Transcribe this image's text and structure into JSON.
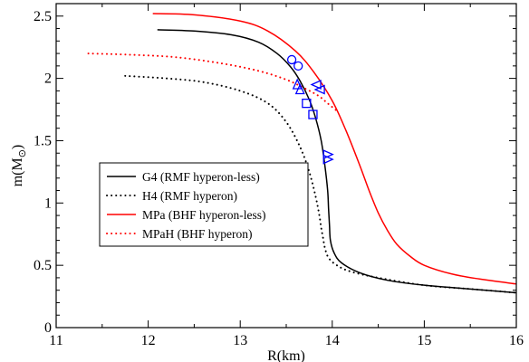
{
  "chart_data": {
    "type": "line",
    "xlabel": "R(km)",
    "ylabel": "m(M",
    "ylabel_sub": "⊙",
    "ylabel_close": ")",
    "xlim": [
      11,
      16
    ],
    "ylim": [
      0,
      2.6
    ],
    "xticks": [
      11,
      12,
      13,
      14,
      15,
      16
    ],
    "yticks": [
      0,
      0.5,
      1,
      1.5,
      2,
      2.5
    ],
    "xtick_labels": [
      "11",
      "12",
      "13",
      "14",
      "15",
      "16"
    ],
    "ytick_labels": [
      "0",
      "0.5",
      "1",
      "1.5",
      "2",
      "2.5"
    ],
    "grid": false,
    "legend_placement": "center-left",
    "series": [
      {
        "name": "G4 (RMF hyperon-less)",
        "color": "#000000",
        "style": "solid",
        "x": [
          12.1,
          12.5,
          12.9,
          13.2,
          13.4,
          13.55,
          13.65,
          13.75,
          13.82,
          13.88,
          13.92,
          13.95,
          13.96,
          13.97,
          13.98,
          14.02,
          14.1,
          14.3,
          14.6,
          15.0,
          15.5,
          16.0
        ],
        "y": [
          2.39,
          2.38,
          2.35,
          2.29,
          2.2,
          2.09,
          1.98,
          1.83,
          1.68,
          1.5,
          1.3,
          1.1,
          0.95,
          0.82,
          0.7,
          0.6,
          0.52,
          0.44,
          0.38,
          0.34,
          0.31,
          0.28
        ]
      },
      {
        "name": "H4 (RMF hyperon)",
        "color": "#000000",
        "style": "dotted",
        "x": [
          11.75,
          12.2,
          12.6,
          13.0,
          13.3,
          13.5,
          13.65,
          13.75,
          13.82,
          13.86,
          13.88,
          13.9,
          13.92,
          13.96,
          14.05,
          14.2,
          14.5,
          15.0,
          15.5,
          16.0
        ],
        "y": [
          2.02,
          2.0,
          1.97,
          1.9,
          1.8,
          1.65,
          1.45,
          1.25,
          1.05,
          0.9,
          0.8,
          0.72,
          0.64,
          0.56,
          0.5,
          0.45,
          0.4,
          0.34,
          0.31,
          0.28
        ]
      },
      {
        "name": "MPa (BHF hyperon-less)",
        "color": "#ff0000",
        "style": "solid",
        "x": [
          12.05,
          12.5,
          13.0,
          13.3,
          13.6,
          13.8,
          14.0,
          14.15,
          14.3,
          14.4,
          14.5,
          14.6,
          14.7,
          14.85,
          15.0,
          15.3,
          15.6,
          16.0
        ],
        "y": [
          2.52,
          2.51,
          2.46,
          2.38,
          2.22,
          2.05,
          1.82,
          1.58,
          1.3,
          1.1,
          0.92,
          0.78,
          0.67,
          0.57,
          0.5,
          0.43,
          0.39,
          0.35
        ]
      },
      {
        "name": "MPaH (BHF hyperon)",
        "color": "#ff0000",
        "style": "dotted",
        "x": [
          11.35,
          11.8,
          12.3,
          12.8,
          13.2,
          13.5,
          13.7,
          13.85,
          13.95,
          14.05
        ],
        "y": [
          2.2,
          2.19,
          2.17,
          2.12,
          2.06,
          1.99,
          1.92,
          1.86,
          1.8,
          1.74
        ]
      }
    ],
    "markers": [
      {
        "shape": "circle",
        "x": 13.56,
        "y": 2.15,
        "color": "#0000ff"
      },
      {
        "shape": "circle",
        "x": 13.63,
        "y": 2.1,
        "color": "#0000ff"
      },
      {
        "shape": "triangle-up",
        "x": 13.62,
        "y": 1.95,
        "color": "#0000ff"
      },
      {
        "shape": "triangle-up",
        "x": 13.65,
        "y": 1.91,
        "color": "#0000ff"
      },
      {
        "shape": "triangle-left",
        "x": 13.83,
        "y": 1.95,
        "color": "#0000ff"
      },
      {
        "shape": "triangle-left",
        "x": 13.87,
        "y": 1.91,
        "color": "#0000ff"
      },
      {
        "shape": "square",
        "x": 13.72,
        "y": 1.8,
        "color": "#0000ff"
      },
      {
        "shape": "square",
        "x": 13.79,
        "y": 1.71,
        "color": "#0000ff"
      },
      {
        "shape": "triangle-right",
        "x": 13.95,
        "y": 1.39,
        "color": "#0000ff"
      },
      {
        "shape": "triangle-right",
        "x": 13.95,
        "y": 1.35,
        "color": "#0000ff"
      }
    ]
  }
}
